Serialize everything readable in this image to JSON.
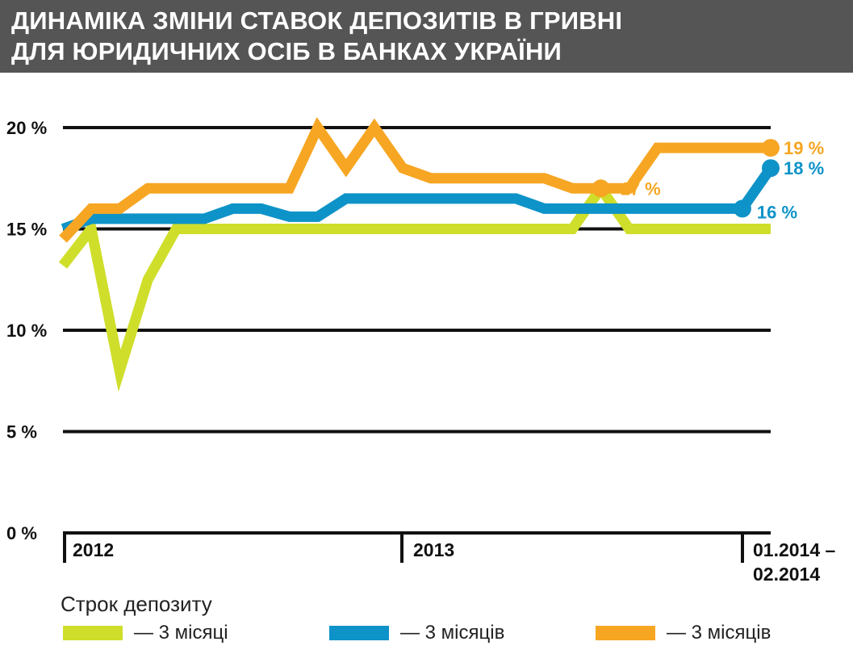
{
  "title": {
    "line1": "ДИНАМІКА ЗМІНИ СТАВОК ДЕПОЗИТІВ В ГРИВНІ",
    "line2": "ДЛЯ ЮРИДИЧНИХ ОСІБ В БАНКАХ УКРАЇНИ"
  },
  "legend": {
    "title": "Строк депозиту",
    "items": [
      {
        "label": "— 3 місяці",
        "color": "#cfde2a"
      },
      {
        "label": "— 3 місяців",
        "color": "#0e93c8"
      },
      {
        "label": "— 3 місяців",
        "color": "#f6a623"
      }
    ]
  },
  "chart_data": {
    "type": "line",
    "ylim": [
      0,
      20
    ],
    "yticks": [
      "0 %",
      "5 %",
      "10 %",
      "15 %",
      "20 %"
    ],
    "xticks": [
      "2012",
      "2013",
      "01.2014 – 02.2014"
    ],
    "x_periods": [
      "2012-01",
      "2012-02",
      "2012-03",
      "2012-04",
      "2012-05",
      "2012-06",
      "2012-07",
      "2012-08",
      "2012-09",
      "2012-10",
      "2012-11",
      "2012-12",
      "2013-01",
      "2013-02",
      "2013-03",
      "2013-04",
      "2013-05",
      "2013-06",
      "2013-07",
      "2013-08",
      "2013-09",
      "2013-10",
      "2013-11",
      "2013-12",
      "2014-01",
      "2014-02"
    ],
    "series": [
      {
        "color": "#cfde2a",
        "values": [
          13.2,
          15.0,
          8.0,
          12.5,
          15.0,
          15.0,
          15.0,
          15.0,
          15.0,
          15.0,
          15.0,
          15.0,
          15.0,
          15.0,
          15.0,
          15.0,
          15.0,
          15.0,
          15.0,
          17.0,
          15.0,
          15.0,
          15.0,
          15.0,
          15.0,
          15.0
        ],
        "end_label": ""
      },
      {
        "color": "#0e93c8",
        "values": [
          15.0,
          15.5,
          15.5,
          15.5,
          15.5,
          15.5,
          16.0,
          16.0,
          15.6,
          15.6,
          16.5,
          16.5,
          16.5,
          16.5,
          16.5,
          16.5,
          16.5,
          16.0,
          16.0,
          16.0,
          16.0,
          16.0,
          16.0,
          16.0,
          16.0,
          18.0
        ],
        "end_label": "18 %",
        "point_labels": [
          {
            "index": 24,
            "label": "16 %"
          }
        ]
      },
      {
        "color": "#f6a623",
        "values": [
          14.5,
          16.0,
          16.0,
          17.0,
          17.0,
          17.0,
          17.0,
          17.0,
          17.0,
          20.0,
          18.0,
          20.0,
          18.0,
          17.5,
          17.5,
          17.5,
          17.5,
          17.5,
          17.0,
          17.0,
          17.0,
          19.0,
          19.0,
          19.0,
          19.0,
          19.0
        ],
        "end_label": "19 %",
        "point_labels": [
          {
            "index": 19,
            "label": "17 %"
          }
        ]
      }
    ]
  }
}
